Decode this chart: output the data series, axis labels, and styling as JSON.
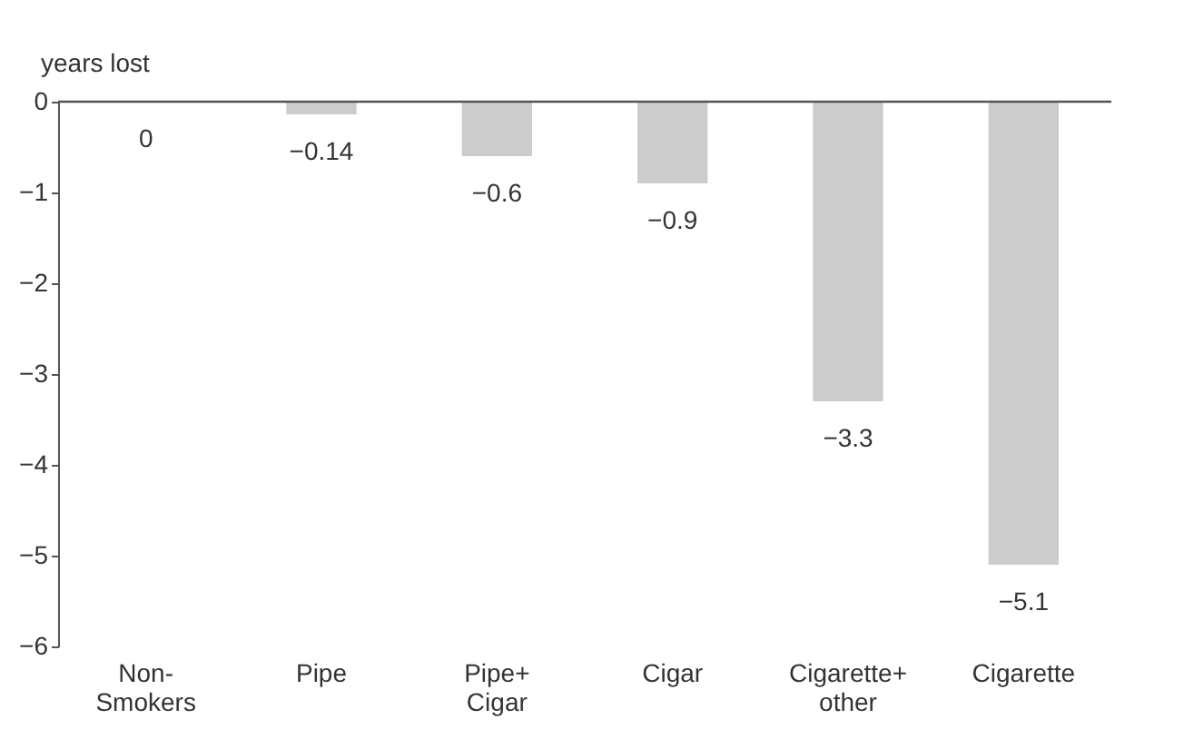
{
  "chart_data": {
    "type": "bar",
    "ylabel": "years lost",
    "categories": [
      "Non-\nSmokers",
      "Pipe",
      "Pipe+\nCigar",
      "Cigar",
      "Cigarette+\nother",
      "Cigarette"
    ],
    "values": [
      0,
      -0.14,
      -0.6,
      -0.9,
      -3.3,
      -5.1
    ],
    "color": "#cccccc",
    "ylim": [
      -6,
      0
    ],
    "yticks": [
      0,
      -1,
      -2,
      -3,
      -4,
      -5,
      -6
    ],
    "data_labels": true,
    "grid": false
  }
}
